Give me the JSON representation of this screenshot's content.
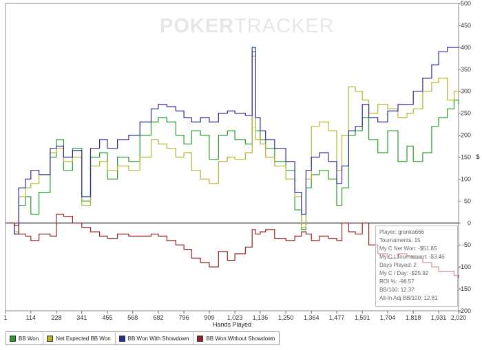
{
  "watermark": {
    "bold_part": "POKER",
    "light_part": "TRACKER"
  },
  "chart_data": {
    "type": "line",
    "xlabel": "Hands Played",
    "ylabel": "$",
    "xlim": [
      1,
      2020
    ],
    "ylim": [
      -200,
      500
    ],
    "x_ticks": [
      "1",
      "114",
      "228",
      "341",
      "455",
      "568",
      "682",
      "796",
      "909",
      "1,023",
      "1,136",
      "1,250",
      "1,364",
      "1,477",
      "1,591",
      "1,704",
      "1,818",
      "1,931",
      "2,020"
    ],
    "x_tick_values": [
      1,
      114,
      228,
      341,
      455,
      568,
      682,
      796,
      909,
      1023,
      1136,
      1250,
      1364,
      1477,
      1591,
      1704,
      1818,
      1931,
      2020
    ],
    "y_ticks": [
      500,
      450,
      400,
      350,
      300,
      250,
      200,
      150,
      100,
      50,
      0,
      -50,
      -100,
      -150,
      -200
    ],
    "grid": false,
    "legend_position": "bottom-left",
    "series": [
      {
        "name": "BB Won",
        "color": "#2a9a2a",
        "x": [
          1,
          40,
          60,
          90,
          114,
          150,
          200,
          228,
          260,
          300,
          341,
          380,
          420,
          455,
          500,
          550,
          600,
          650,
          682,
          720,
          760,
          796,
          830,
          870,
          909,
          950,
          990,
          1023,
          1070,
          1100,
          1115,
          1136,
          1160,
          1200,
          1250,
          1290,
          1320,
          1340,
          1364,
          1400,
          1440,
          1477,
          1500,
          1530,
          1560,
          1591,
          1620,
          1660,
          1704,
          1750,
          1790,
          1818,
          1860,
          1900,
          1931,
          1970,
          2000,
          2020
        ],
        "y": [
          0,
          -25,
          40,
          60,
          20,
          70,
          150,
          190,
          120,
          170,
          50,
          150,
          160,
          100,
          150,
          140,
          200,
          230,
          240,
          230,
          200,
          180,
          210,
          200,
          145,
          200,
          210,
          190,
          180,
          390,
          210,
          190,
          170,
          140,
          120,
          30,
          -15,
          80,
          110,
          120,
          100,
          40,
          80,
          200,
          210,
          240,
          190,
          160,
          210,
          140,
          175,
          140,
          160,
          220,
          240,
          260,
          280,
          270
        ]
      },
      {
        "name": "Net Expected BB Won",
        "color": "#b3b32f",
        "x": [
          1,
          40,
          60,
          90,
          114,
          150,
          200,
          228,
          260,
          300,
          341,
          380,
          420,
          455,
          500,
          550,
          600,
          650,
          682,
          720,
          760,
          796,
          830,
          870,
          909,
          950,
          990,
          1023,
          1070,
          1100,
          1115,
          1136,
          1160,
          1200,
          1250,
          1290,
          1320,
          1340,
          1364,
          1400,
          1440,
          1477,
          1500,
          1530,
          1560,
          1591,
          1620,
          1660,
          1704,
          1750,
          1790,
          1818,
          1860,
          1900,
          1931,
          1970,
          2000,
          2020
        ],
        "y": [
          0,
          -20,
          60,
          80,
          90,
          110,
          160,
          170,
          140,
          150,
          40,
          130,
          140,
          120,
          130,
          120,
          150,
          190,
          180,
          170,
          150,
          160,
          120,
          100,
          90,
          140,
          150,
          145,
          160,
          380,
          190,
          180,
          150,
          130,
          100,
          60,
          -10,
          100,
          220,
          230,
          210,
          120,
          200,
          310,
          300,
          280,
          250,
          270,
          260,
          240,
          250,
          260,
          300,
          320,
          330,
          280,
          300,
          290
        ]
      },
      {
        "name": "BB Won With Showdown",
        "color": "#2b2b99",
        "x": [
          1,
          40,
          60,
          90,
          114,
          150,
          200,
          228,
          260,
          300,
          341,
          380,
          420,
          455,
          500,
          550,
          600,
          650,
          682,
          720,
          760,
          796,
          830,
          870,
          909,
          950,
          990,
          1023,
          1070,
          1100,
          1115,
          1136,
          1160,
          1200,
          1250,
          1290,
          1320,
          1340,
          1364,
          1400,
          1440,
          1477,
          1500,
          1530,
          1560,
          1591,
          1620,
          1660,
          1704,
          1750,
          1790,
          1818,
          1860,
          1900,
          1931,
          1970,
          2000,
          2020
        ],
        "y": [
          0,
          -25,
          80,
          100,
          120,
          110,
          170,
          175,
          150,
          165,
          60,
          170,
          190,
          170,
          190,
          200,
          230,
          260,
          270,
          265,
          255,
          240,
          230,
          240,
          230,
          250,
          255,
          250,
          245,
          400,
          240,
          210,
          190,
          170,
          140,
          70,
          20,
          120,
          150,
          160,
          140,
          90,
          130,
          210,
          220,
          270,
          240,
          230,
          255,
          270,
          270,
          300,
          330,
          360,
          390,
          400,
          400,
          400
        ]
      },
      {
        "name": "BB Won Without Showdown",
        "color": "#992222",
        "x": [
          1,
          40,
          60,
          90,
          114,
          150,
          200,
          228,
          260,
          300,
          341,
          380,
          420,
          455,
          500,
          550,
          600,
          650,
          682,
          720,
          760,
          796,
          830,
          870,
          909,
          950,
          990,
          1023,
          1070,
          1100,
          1115,
          1136,
          1160,
          1200,
          1250,
          1290,
          1320,
          1340,
          1364,
          1400,
          1440,
          1477,
          1500,
          1530,
          1560,
          1591,
          1620,
          1660,
          1704,
          1750,
          1790,
          1818,
          1860,
          1900,
          1931,
          1970,
          2000,
          2020
        ],
        "y": [
          0,
          -5,
          -25,
          -30,
          -40,
          -25,
          -30,
          20,
          15,
          0,
          -10,
          -20,
          -30,
          -35,
          -25,
          -30,
          -30,
          -25,
          -30,
          -40,
          -50,
          -60,
          -80,
          -90,
          -100,
          -65,
          -85,
          -70,
          -55,
          -15,
          -25,
          -20,
          -15,
          -35,
          -40,
          -30,
          -20,
          -25,
          -40,
          -30,
          -35,
          -40,
          0,
          -20,
          -25,
          0,
          -50,
          -70,
          -80,
          -70,
          -75,
          -80,
          -90,
          -100,
          -110,
          -110,
          -120,
          -125
        ]
      }
    ]
  },
  "stats": {
    "player": "Player: grenka666",
    "tournaments": "Tournaments: 15",
    "net_won": "My C Net Won: -$51.85",
    "per_tournament": "My C / Tournament: -$3.46",
    "days_played": "Days Played: 2",
    "per_day": "My C / Day: -$25.92",
    "roi": "ROI %: -98.57",
    "bb_100": "BB/100: 12.37",
    "allin_bb_100": "All-In Adj BB/100: 12.81"
  },
  "legend": [
    {
      "label": "BB Won",
      "color": "#2a9a2a"
    },
    {
      "label": "Net Expected BB Won",
      "color": "#b3b32f"
    },
    {
      "label": "BB Won With Showdown",
      "color": "#2b2b99"
    },
    {
      "label": "BB Won Without Showdown",
      "color": "#992222"
    }
  ]
}
